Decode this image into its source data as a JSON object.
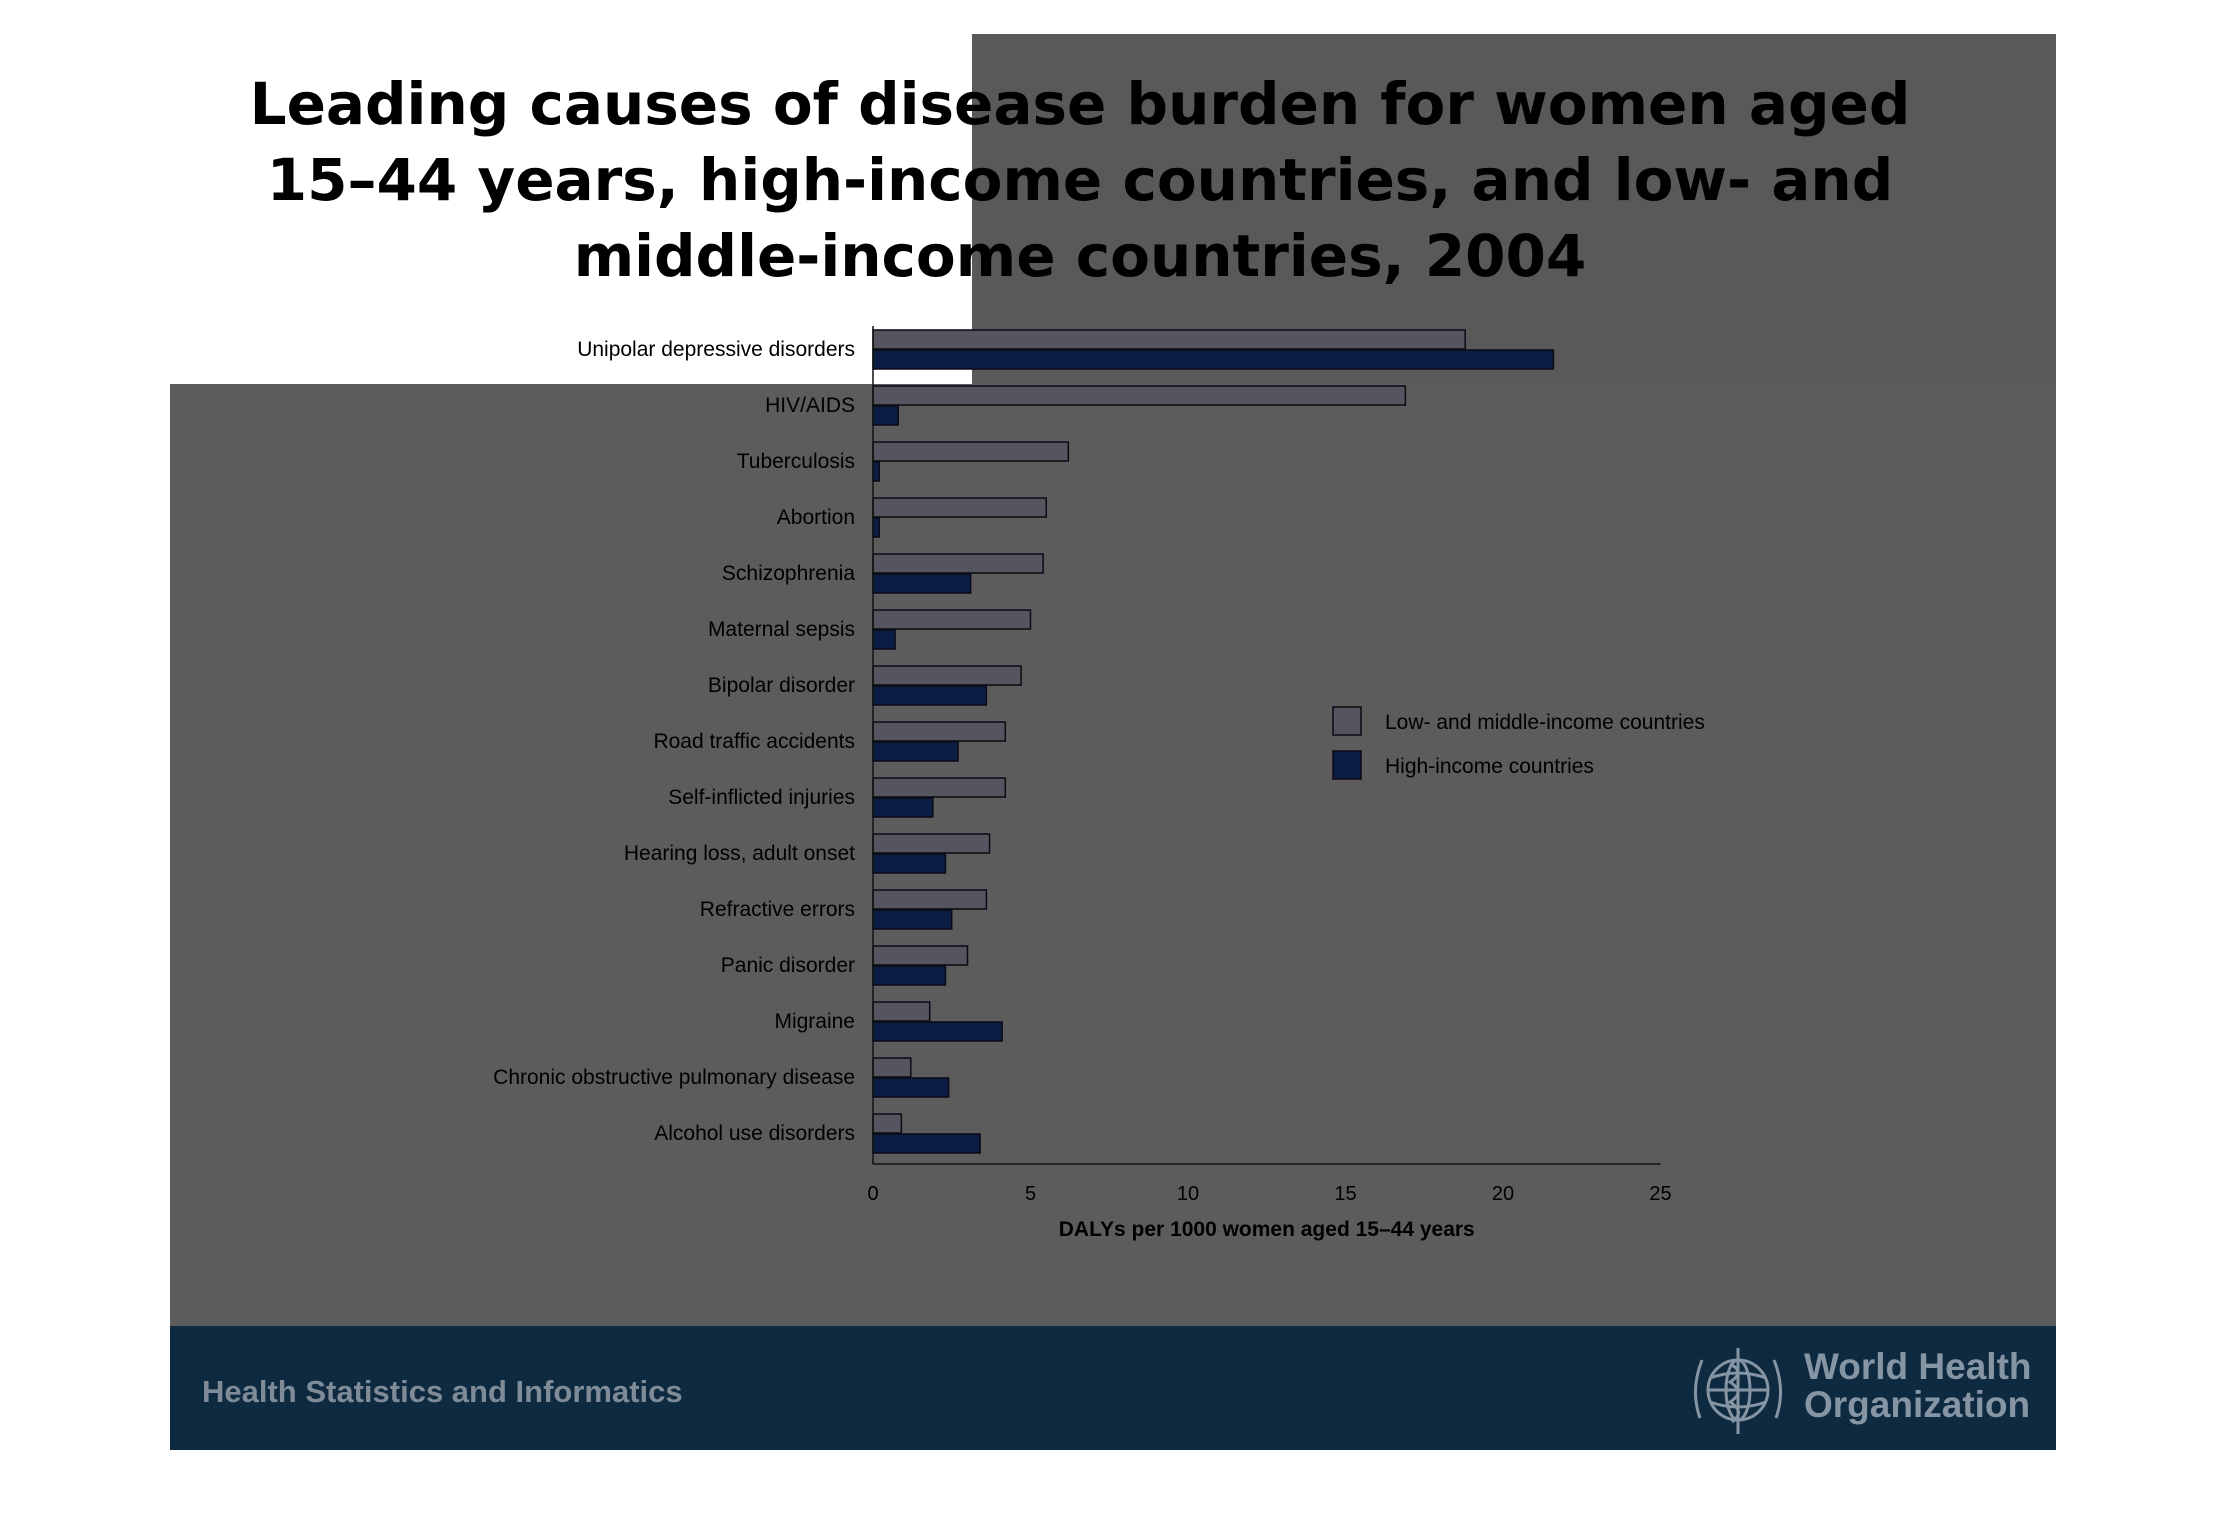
{
  "title": "Leading causes of disease burden for women aged 15–44 years, high-income countries, and low- and middle-income countries, 2004",
  "footer": {
    "left_text": "Health Statistics and Informatics",
    "org_line1": "World Health",
    "org_line2": "Organization",
    "logo_icon": "who-emblem-icon"
  },
  "colors": {
    "slide_bg": "#5c5c5c",
    "footer_bg": "#0e2a41",
    "low_middle": "#55555f",
    "high": "#0b1d45"
  },
  "chart_data": {
    "type": "bar",
    "orientation": "horizontal",
    "categories": [
      "Unipolar depressive disorders",
      "HIV/AIDS",
      "Tuberculosis",
      "Abortion",
      "Schizophrenia",
      "Maternal sepsis",
      "Bipolar disorder",
      "Road traffic accidents",
      "Self-inflicted injuries",
      "Hearing loss, adult onset",
      "Refractive errors",
      "Panic disorder",
      "Migraine",
      "Chronic obstructive pulmonary disease",
      "Alcohol use disorders"
    ],
    "series": [
      {
        "name": "Low- and middle-income countries",
        "color": "#55555f",
        "values": [
          18.8,
          16.9,
          6.2,
          5.5,
          5.4,
          5.0,
          4.7,
          4.2,
          4.2,
          3.7,
          3.6,
          3.0,
          1.8,
          1.2,
          0.9
        ]
      },
      {
        "name": "High-income countries",
        "color": "#0b1d45",
        "values": [
          21.6,
          0.8,
          0.2,
          0.2,
          3.1,
          0.7,
          3.6,
          2.7,
          1.9,
          2.3,
          2.5,
          2.3,
          4.1,
          2.4,
          3.4
        ]
      }
    ],
    "xlabel": "DALYs per 1000 women aged 15–44 years",
    "xlim": [
      0,
      25
    ],
    "xticks": [
      "0",
      "5",
      "10",
      "15",
      "20",
      "25"
    ],
    "legend_position": "right",
    "grid": false
  }
}
